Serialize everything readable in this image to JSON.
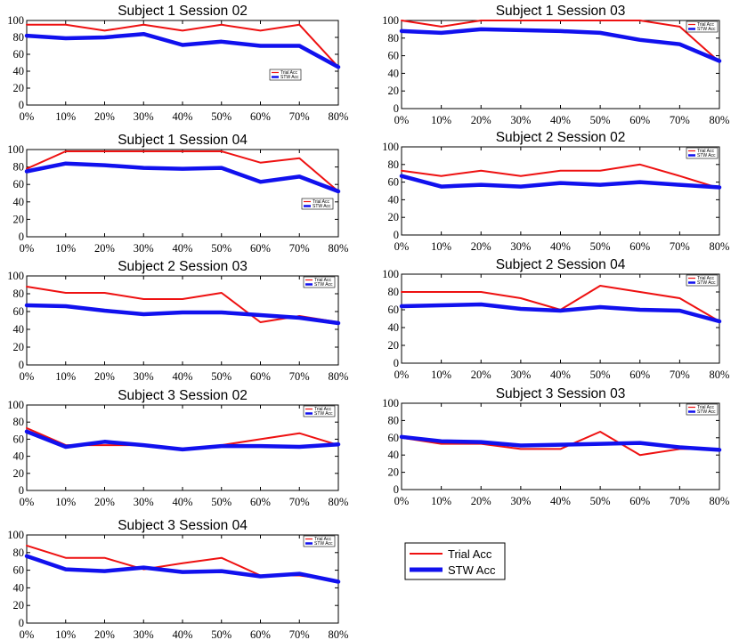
{
  "colors": {
    "trial": "#ee1111",
    "stw": "#1111ee"
  },
  "legend": {
    "trial_label": "Trial Acc",
    "stw_label": "STW Acc"
  },
  "chart_data": [
    {
      "type": "line",
      "title": "Subject 1 Session 02",
      "categories": [
        "0%",
        "10%",
        "20%",
        "30%",
        "40%",
        "50%",
        "60%",
        "70%",
        "80%"
      ],
      "ylim": [
        0,
        100
      ],
      "yticks": [
        0,
        20,
        40,
        60,
        80,
        100
      ],
      "legend_position": "center-right",
      "series": [
        {
          "name": "Trial Acc",
          "values": [
            95,
            95,
            88,
            95,
            88,
            95,
            88,
            95,
            45
          ]
        },
        {
          "name": "STW Acc",
          "values": [
            82,
            79,
            80,
            84,
            71,
            75,
            70,
            70,
            45
          ]
        }
      ]
    },
    {
      "type": "line",
      "title": "Subject 1 Session 03",
      "categories": [
        "0%",
        "10%",
        "20%",
        "30%",
        "40%",
        "50%",
        "60%",
        "70%",
        "80%"
      ],
      "ylim": [
        0,
        100
      ],
      "yticks": [
        0,
        20,
        40,
        60,
        80,
        100
      ],
      "legend_position": "top-right",
      "series": [
        {
          "name": "Trial Acc",
          "values": [
            100,
            93,
            100,
            100,
            100,
            100,
            100,
            93,
            53
          ]
        },
        {
          "name": "STW Acc",
          "values": [
            88,
            86,
            90,
            89,
            88,
            86,
            78,
            73,
            54
          ]
        }
      ]
    },
    {
      "type": "line",
      "title": "Subject 1 Session 04",
      "categories": [
        "0%",
        "10%",
        "20%",
        "30%",
        "40%",
        "50%",
        "60%",
        "70%",
        "80%"
      ],
      "ylim": [
        0,
        100
      ],
      "yticks": [
        0,
        20,
        40,
        60,
        80,
        100
      ],
      "legend_position": "center-right",
      "series": [
        {
          "name": "Trial Acc",
          "values": [
            78,
            98,
            98,
            98,
            98,
            98,
            85,
            90,
            52
          ]
        },
        {
          "name": "STW Acc",
          "values": [
            75,
            84,
            82,
            79,
            78,
            79,
            63,
            69,
            52
          ]
        }
      ]
    },
    {
      "type": "line",
      "title": "Subject 2 Session 02",
      "categories": [
        "0%",
        "10%",
        "20%",
        "30%",
        "40%",
        "50%",
        "60%",
        "70%",
        "80%"
      ],
      "ylim": [
        0,
        100
      ],
      "yticks": [
        0,
        20,
        40,
        60,
        80,
        100
      ],
      "legend_position": "top-right",
      "series": [
        {
          "name": "Trial Acc",
          "values": [
            73,
            67,
            73,
            67,
            73,
            73,
            80,
            67,
            53
          ]
        },
        {
          "name": "STW Acc",
          "values": [
            67,
            55,
            57,
            55,
            59,
            57,
            60,
            57,
            54
          ]
        }
      ]
    },
    {
      "type": "line",
      "title": "Subject 2 Session 03",
      "categories": [
        "0%",
        "10%",
        "20%",
        "30%",
        "40%",
        "50%",
        "60%",
        "70%",
        "80%"
      ],
      "ylim": [
        0,
        100
      ],
      "yticks": [
        0,
        20,
        40,
        60,
        80,
        100
      ],
      "legend_position": "top-right",
      "series": [
        {
          "name": "Trial Acc",
          "values": [
            88,
            81,
            81,
            74,
            74,
            81,
            48,
            55,
            48
          ]
        },
        {
          "name": "STW Acc",
          "values": [
            67,
            66,
            61,
            57,
            59,
            59,
            56,
            53,
            47
          ]
        }
      ]
    },
    {
      "type": "line",
      "title": "Subject 2 Session 04",
      "categories": [
        "0%",
        "10%",
        "20%",
        "30%",
        "40%",
        "50%",
        "60%",
        "70%",
        "80%"
      ],
      "ylim": [
        0,
        100
      ],
      "yticks": [
        0,
        20,
        40,
        60,
        80,
        100
      ],
      "legend_position": "top-right",
      "series": [
        {
          "name": "Trial Acc",
          "values": [
            80,
            80,
            80,
            73,
            60,
            87,
            80,
            73,
            47
          ]
        },
        {
          "name": "STW Acc",
          "values": [
            64,
            65,
            66,
            61,
            59,
            63,
            60,
            59,
            47
          ]
        }
      ]
    },
    {
      "type": "line",
      "title": "Subject 3 Session 02",
      "categories": [
        "0%",
        "10%",
        "20%",
        "30%",
        "40%",
        "50%",
        "60%",
        "70%",
        "80%"
      ],
      "ylim": [
        0,
        100
      ],
      "yticks": [
        0,
        20,
        40,
        60,
        80,
        100
      ],
      "legend_position": "top-right",
      "series": [
        {
          "name": "Trial Acc",
          "values": [
            73,
            53,
            53,
            53,
            47,
            53,
            60,
            67,
            53
          ]
        },
        {
          "name": "STW Acc",
          "values": [
            69,
            51,
            57,
            53,
            48,
            52,
            52,
            51,
            54
          ]
        }
      ]
    },
    {
      "type": "line",
      "title": "Subject 3 Session 03",
      "categories": [
        "0%",
        "10%",
        "20%",
        "30%",
        "40%",
        "50%",
        "60%",
        "70%",
        "80%"
      ],
      "ylim": [
        0,
        100
      ],
      "yticks": [
        0,
        20,
        40,
        60,
        80,
        100
      ],
      "legend_position": "top-right",
      "series": [
        {
          "name": "Trial Acc",
          "values": [
            60,
            53,
            53,
            47,
            47,
            67,
            40,
            47,
            47
          ]
        },
        {
          "name": "STW Acc",
          "values": [
            61,
            56,
            55,
            51,
            52,
            53,
            54,
            49,
            46
          ]
        }
      ]
    },
    {
      "type": "line",
      "title": "Subject 3 Session 04",
      "categories": [
        "0%",
        "10%",
        "20%",
        "30%",
        "40%",
        "50%",
        "60%",
        "70%",
        "80%"
      ],
      "ylim": [
        0,
        100
      ],
      "yticks": [
        0,
        20,
        40,
        60,
        80,
        100
      ],
      "legend_position": "top-right",
      "series": [
        {
          "name": "Trial Acc",
          "values": [
            88,
            74,
            74,
            61,
            68,
            74,
            54,
            54,
            48
          ]
        },
        {
          "name": "STW Acc",
          "values": [
            76,
            61,
            59,
            63,
            58,
            59,
            53,
            56,
            47
          ]
        }
      ]
    }
  ]
}
